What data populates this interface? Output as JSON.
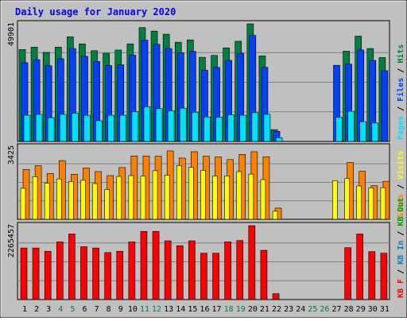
{
  "title": "Daily usage for January 2020",
  "colors": {
    "background": "#c0c0c0",
    "title": "#0000ff",
    "hits": "#008040",
    "files": "#0040ff",
    "pages": "#00e0ff",
    "visits": "#ffff00",
    "sites": "#ff8000",
    "kb_in": "#0080c0",
    "kb_out": "#00a000",
    "kb_f": "#ff0000"
  },
  "chart_data": [
    {
      "type": "bar",
      "panel": "hits-files-pages",
      "ymax_label": "49901",
      "ylim": [
        0,
        49901
      ],
      "legend": [
        "Pages",
        "Files",
        "Hits"
      ],
      "categories": [
        "1",
        "2",
        "3",
        "4",
        "5",
        "6",
        "7",
        "8",
        "9",
        "10",
        "11",
        "12",
        "13",
        "14",
        "15",
        "16",
        "17",
        "18",
        "19",
        "20",
        "21",
        "22",
        "23",
        "24",
        "25",
        "26",
        "27",
        "28",
        "29",
        "30",
        "31"
      ],
      "series": [
        {
          "name": "Hits",
          "values": [
            39000,
            40000,
            37800,
            40000,
            44400,
            41400,
            38500,
            37400,
            38800,
            41400,
            48300,
            46800,
            45500,
            42100,
            43100,
            35700,
            36500,
            39700,
            42500,
            49901,
            36300,
            5000,
            0,
            0,
            0,
            0,
            0,
            38300,
            44700,
            39400,
            35600
          ]
        },
        {
          "name": "Files",
          "values": [
            33400,
            34700,
            32100,
            35100,
            39400,
            36100,
            33900,
            32200,
            32500,
            36600,
            43000,
            41200,
            39400,
            37600,
            38200,
            30200,
            31400,
            34400,
            37400,
            45000,
            31400,
            4300,
            0,
            0,
            0,
            0,
            32300,
            32800,
            38800,
            34400,
            30000
          ]
        },
        {
          "name": "Pages",
          "values": [
            11100,
            11500,
            10100,
            11500,
            12000,
            11100,
            8800,
            11100,
            11100,
            12600,
            14700,
            13900,
            13000,
            14100,
            12400,
            10400,
            10300,
            11300,
            11100,
            12200,
            11500,
            1600,
            0,
            0,
            0,
            0,
            10300,
            12800,
            8400,
            7800,
            0
          ]
        }
      ]
    },
    {
      "type": "bar",
      "panel": "visits-sites",
      "ymax_label": "3425",
      "ylim": [
        0,
        3425
      ],
      "legend": [
        "Sites",
        "Visits"
      ],
      "categories": [
        "1",
        "2",
        "3",
        "4",
        "5",
        "6",
        "7",
        "8",
        "9",
        "10",
        "11",
        "12",
        "13",
        "14",
        "15",
        "16",
        "17",
        "18",
        "19",
        "20",
        "21",
        "22",
        "23",
        "24",
        "25",
        "26",
        "27",
        "28",
        "29",
        "30",
        "31"
      ],
      "series": [
        {
          "name": "Sites",
          "values": [
            2360,
            2540,
            2170,
            2780,
            2130,
            2430,
            2260,
            2070,
            2450,
            3000,
            3000,
            2990,
            3240,
            2900,
            3200,
            2990,
            2950,
            2830,
            3070,
            3200,
            2960,
            530,
            0,
            0,
            0,
            0,
            0,
            2690,
            2270,
            1590,
            1800
          ]
        },
        {
          "name": "Visits",
          "values": [
            1470,
            2020,
            1710,
            1910,
            1790,
            1850,
            1690,
            1410,
            2030,
            2070,
            2050,
            2300,
            2090,
            2540,
            2460,
            2320,
            2050,
            2060,
            2260,
            2140,
            1880,
            380,
            0,
            0,
            0,
            0,
            1830,
            1930,
            1580,
            1490,
            1500
          ]
        }
      ]
    },
    {
      "type": "bar",
      "panel": "kbytes",
      "ymax_label": "2265457",
      "ylim": [
        0,
        2265457
      ],
      "legend": [
        "KB F",
        "KB In",
        "KB Out"
      ],
      "categories": [
        "1",
        "2",
        "3",
        "4",
        "5",
        "6",
        "7",
        "8",
        "9",
        "10",
        "11",
        "12",
        "13",
        "14",
        "15",
        "16",
        "17",
        "18",
        "19",
        "20",
        "21",
        "22",
        "23",
        "24",
        "25",
        "26",
        "27",
        "28",
        "29",
        "30",
        "31"
      ],
      "series": [
        {
          "name": "KB F",
          "values": [
            1580000,
            1580000,
            1480000,
            1770000,
            2010000,
            1620000,
            1580000,
            1440000,
            1480000,
            1770000,
            2090000,
            2090000,
            1800000,
            1650000,
            1800000,
            1420000,
            1420000,
            1770000,
            1810000,
            2265457,
            1510000,
            180000,
            0,
            0,
            0,
            0,
            0,
            1590000,
            2010000,
            1470000,
            1420000
          ]
        }
      ]
    }
  ],
  "xaxis": {
    "labels": [
      "1",
      "2",
      "3",
      "4",
      "5",
      "6",
      "7",
      "8",
      "9",
      "10",
      "11",
      "12",
      "13",
      "14",
      "15",
      "16",
      "17",
      "18",
      "19",
      "20",
      "21",
      "22",
      "23",
      "24",
      "25",
      "26",
      "27",
      "28",
      "29",
      "30",
      "31"
    ],
    "weekend_days": [
      "4",
      "5",
      "11",
      "12",
      "18",
      "19",
      "25",
      "26"
    ]
  }
}
